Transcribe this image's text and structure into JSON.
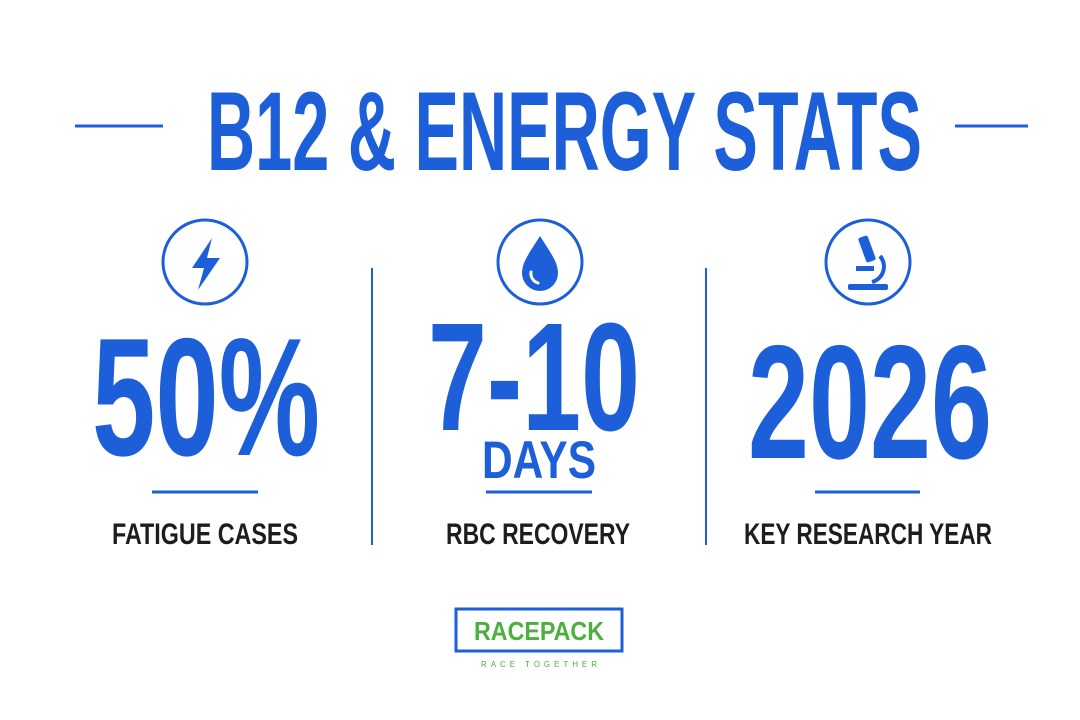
{
  "title": "B12 & ENERGY STATS",
  "stats": [
    {
      "value": "50%",
      "label": "FATIGUE CASES"
    },
    {
      "value": "7-10",
      "unit": "DAYS",
      "label": "RBC RECOVERY"
    },
    {
      "value": "2026",
      "label": "KEY RESEARCH YEAR"
    }
  ],
  "logo": {
    "name": "RACEPACK",
    "tagline": "RACE TOGETHER"
  }
}
